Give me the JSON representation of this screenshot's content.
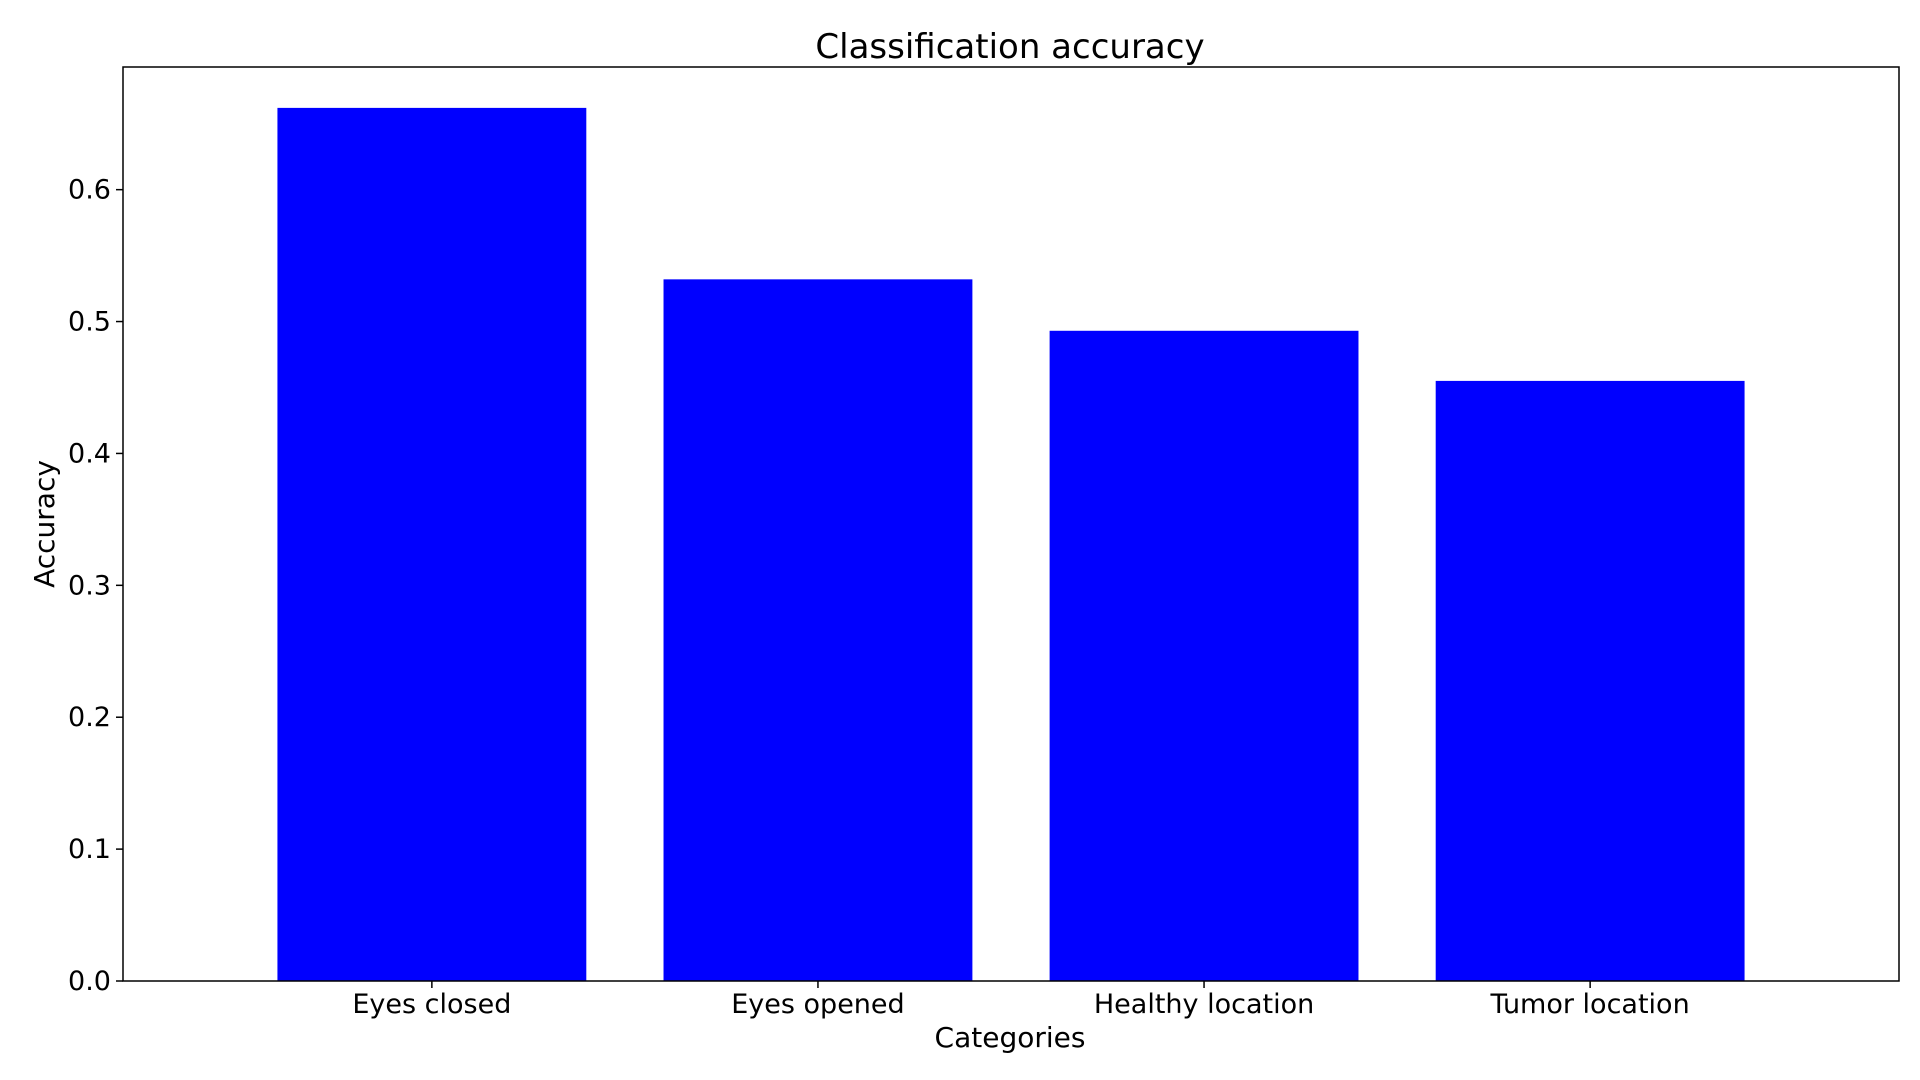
{
  "chart_data": {
    "type": "bar",
    "title": "Classification accuracy",
    "xlabel": "Categories",
    "ylabel": "Accuracy",
    "categories": [
      "Eyes closed",
      "Eyes opened",
      "Healthy location",
      "Tumor location"
    ],
    "values": [
      0.662,
      0.532,
      0.493,
      0.455
    ],
    "ylim": [
      0,
      0.693
    ],
    "yticks": [
      "0.0",
      "0.1",
      "0.2",
      "0.3",
      "0.4",
      "0.5",
      "0.6"
    ],
    "grid": false,
    "legend": "none",
    "bar_color": "#0000ff"
  }
}
